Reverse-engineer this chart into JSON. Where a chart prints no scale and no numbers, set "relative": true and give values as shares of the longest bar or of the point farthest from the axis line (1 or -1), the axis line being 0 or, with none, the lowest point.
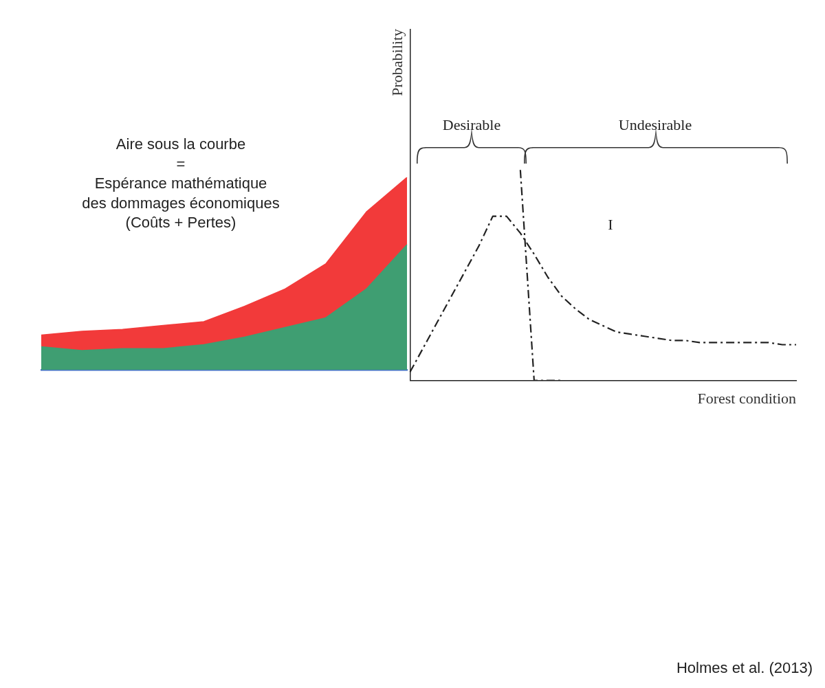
{
  "chart_data": [
    {
      "type": "area",
      "relative": true,
      "marker": "none",
      "legend": false,
      "categories": [
        null,
        null,
        null,
        null,
        null,
        null,
        null,
        null,
        null,
        null
      ],
      "series": [
        {
          "color": "#f23a3a",
          "values": [
            0.18,
            0.2,
            0.21,
            0.23,
            0.25,
            0.33,
            0.42,
            0.55,
            0.82,
            1
          ]
        },
        {
          "color": "#3f9e72",
          "values": [
            0.12,
            0.1,
            0.11,
            0.11,
            0.13,
            0.17,
            0.22,
            0.27,
            0.42,
            0.65
          ]
        }
      ],
      "annotations": [
        "Aire sous la courbe\n=\nEspérance mathématique\ndes dommages économiques\n(Coûts + Pertes)"
      ]
    },
    {
      "type": "line",
      "relative": true,
      "marker": "none",
      "legend": false,
      "ylabel": "Probability",
      "xlabel": "Forest condition",
      "categories": [
        null,
        null,
        null,
        null,
        null,
        null,
        null,
        null,
        null,
        null,
        null,
        null,
        null,
        null,
        null,
        null,
        null,
        null,
        null,
        null,
        null,
        null,
        null,
        null,
        null,
        null,
        null,
        null,
        null
      ],
      "series": [
        {
          "color": "#222222",
          "line_style": "dashed",
          "values": [
            0.04,
            0.16,
            0.28,
            0.4,
            0.52,
            0.64,
            0.78,
            0.78,
            0.7,
            0.6,
            0.49,
            0.4,
            0.34,
            0.29,
            0.26,
            0.23,
            0.22,
            0.21,
            0.2,
            0.19,
            0.19,
            0.18,
            0.18,
            0.18,
            0.18,
            0.18,
            0.18,
            0.17,
            0.17
          ]
        },
        {
          "color": "#222222",
          "line_style": "dashed",
          "values": [
            null,
            null,
            null,
            null,
            null,
            null,
            null,
            null,
            1,
            0,
            0,
            0,
            null,
            null,
            null,
            null,
            null,
            null,
            null,
            null,
            null,
            null,
            null,
            null,
            null,
            null,
            null,
            null,
            null
          ]
        }
      ],
      "annotations": [
        "Desirable",
        "Undesirable",
        "I",
        "Holmes et al. (2013)"
      ]
    }
  ]
}
